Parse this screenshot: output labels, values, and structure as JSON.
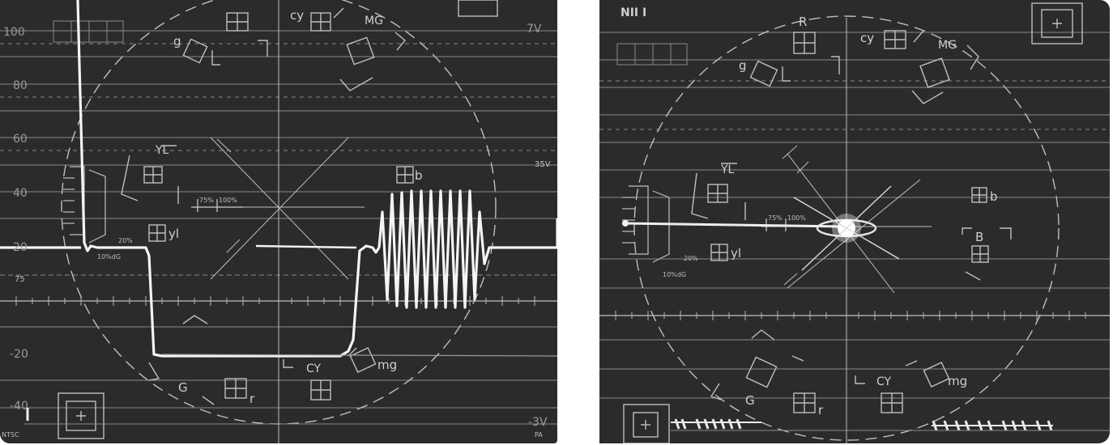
{
  "left_scope": {
    "scale_labels": [
      "100",
      "80",
      "60",
      "40",
      "20",
      "75",
      "-20",
      "-40"
    ],
    "right_labels": [
      "7V",
      "35V",
      "-3V"
    ],
    "targets": {
      "yl_upper": "YL",
      "cy_small": "cy",
      "mg_upper": "MG",
      "g_small": "g",
      "b_small": "b",
      "yl_small": "yl",
      "g_upper": "G",
      "r_small": "r",
      "cy_upper": "CY",
      "mg_small": "mg"
    },
    "percent_marks": [
      "75%",
      "100%"
    ],
    "dg_marks": [
      "20%",
      "10%dG"
    ],
    "bottom_left": "NTSC",
    "bottom_right": "PA"
  },
  "right_scope": {
    "top_left_mark": "NII I",
    "targets": {
      "r_upper": "R",
      "cy_small": "cy",
      "mg_upper": "MG",
      "g_small": "g",
      "yl_upper": "YL",
      "b_small": "b",
      "b_upper": "B",
      "yl_small": "yl",
      "g_upper": "G",
      "r_small": "r",
      "cy_upper": "CY",
      "mg_small": "mg"
    },
    "percent_marks": [
      "75%",
      "100%"
    ],
    "dg_marks": [
      "20%",
      "10%dG"
    ]
  },
  "colors": {
    "screen": "#2b2b2b",
    "trace": "#f2f2f2",
    "graticule": "#bfbfbf",
    "background": "#ffffff"
  }
}
